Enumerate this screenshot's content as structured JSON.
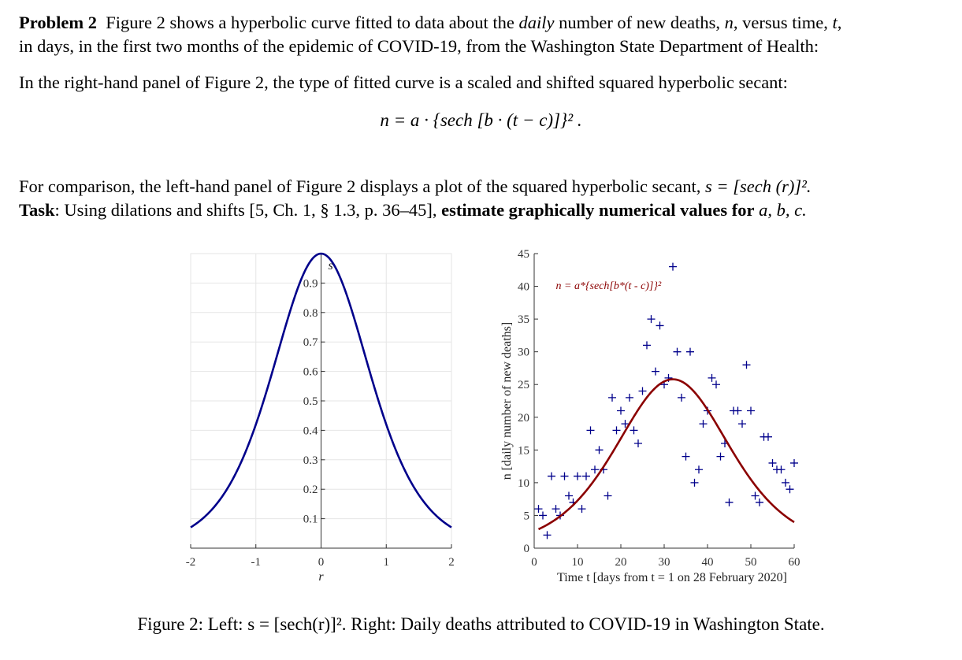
{
  "problem": {
    "heading": "Problem 2",
    "line1_a": "Figure 2 shows a hyperbolic curve fitted to data about the",
    "line1_emph": "daily",
    "line1_b": "number of new deaths,",
    "var_n": "n",
    "line1_c": ", versus time,",
    "var_t": "t",
    "line1_d": ",",
    "line2": "in days, in the first two months of the epidemic of COVID-19, from the Washington State Department of Health:"
  },
  "intro": "In the right-hand panel of Figure 2, the type of fitted curve is a scaled and shifted squared hyperbolic secant:",
  "equation": "n = a · {sech [b · (t − c)]}² .",
  "comparison": {
    "text": "For comparison, the left-hand panel of Figure 2 displays a plot of the squared hyperbolic secant,",
    "formula": "s = [sech (r)]².",
    "task_label": "Task",
    "task_text": ": Using dilations and shifts [5, Ch. 1, § 1.3, p. 36–45],",
    "task_bold": "estimate graphically numerical values for",
    "task_vars": "a, b, c."
  },
  "caption": "Figure 2: Left: s = [sech(r)]². Right: Daily deaths attributed to COVID-19 in Washington State.",
  "chart_data": [
    {
      "type": "line",
      "title": "",
      "xlabel": "r",
      "ylabel": "s",
      "xlim": [
        -2,
        2
      ],
      "ylim": [
        0,
        1
      ],
      "xticks": [
        "-2",
        "-1",
        "0",
        "1",
        "2"
      ],
      "yticks": [
        "0.1",
        "0.2",
        "0.3",
        "0.4",
        "0.5",
        "0.6",
        "0.7",
        "0.8",
        "0.9"
      ],
      "grid": true,
      "function": "sech(r)^2",
      "color": "#00008b"
    },
    {
      "type": "scatter",
      "title": "",
      "xlabel": "Time t  [days from t = 1 on 28 February 2020]",
      "ylabel": "n  [daily number of new deaths]",
      "xlim": [
        0,
        60
      ],
      "ylim": [
        0,
        45
      ],
      "xticks": [
        "0",
        "10",
        "20",
        "30",
        "40",
        "50",
        "60"
      ],
      "yticks": [
        "0",
        "5",
        "10",
        "15",
        "20",
        "25",
        "30",
        "35",
        "40",
        "45"
      ],
      "grid": false,
      "annotation": "n = a*{sech[b*(t - c)]}²",
      "points_color": "#00008b",
      "fit_color": "#8b0000",
      "fit": {
        "a": 25.8,
        "b": 0.0567,
        "c": 32
      },
      "x": [
        1,
        2,
        3,
        4,
        5,
        6,
        7,
        8,
        9,
        10,
        11,
        12,
        13,
        14,
        15,
        16,
        17,
        18,
        19,
        20,
        21,
        22,
        23,
        24,
        25,
        26,
        27,
        28,
        29,
        30,
        31,
        32,
        33,
        34,
        35,
        36,
        37,
        38,
        39,
        40,
        41,
        42,
        43,
        44,
        45,
        46,
        47,
        48,
        49,
        50,
        51,
        52,
        53,
        54,
        55,
        56,
        57,
        58,
        59,
        60
      ],
      "y": [
        6,
        5,
        2,
        11,
        6,
        5,
        11,
        8,
        7,
        11,
        6,
        11,
        18,
        12,
        15,
        12,
        8,
        23,
        18,
        21,
        19,
        23,
        18,
        16,
        24,
        31,
        35,
        27,
        34,
        25,
        26,
        43,
        30,
        23,
        14,
        30,
        10,
        12,
        19,
        21,
        26,
        25,
        14,
        16,
        7,
        21,
        21,
        19,
        28,
        21,
        8,
        7,
        17,
        17,
        13,
        12,
        12,
        10,
        9,
        13
      ]
    }
  ]
}
